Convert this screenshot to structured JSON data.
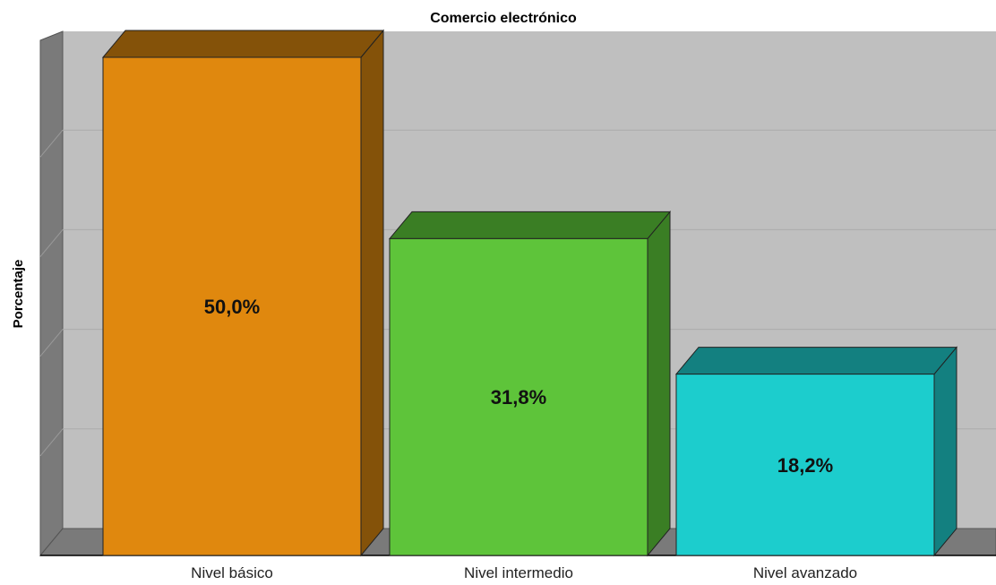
{
  "chart_data": {
    "type": "bar",
    "title": "Comercio electrónico",
    "ylabel": "Porcentaje",
    "xlabel": "",
    "categories": [
      "Nivel básico",
      "Nivel intermedio",
      "Nivel avanzado"
    ],
    "values": [
      50.0,
      31.8,
      18.2
    ],
    "value_labels": [
      "50,0%",
      "31,8%",
      "18,2%"
    ],
    "ylim": [
      0,
      50
    ],
    "grid": true,
    "style": "3d",
    "colors": {
      "bars": [
        "#e0880e",
        "#5ec43a",
        "#1ccdcd"
      ],
      "bar_sides": [
        "#845209",
        "#3a7e24",
        "#138080"
      ],
      "background": "#bfbfbf",
      "walls": "#7a7a7a",
      "gridline": "#ababab"
    }
  }
}
